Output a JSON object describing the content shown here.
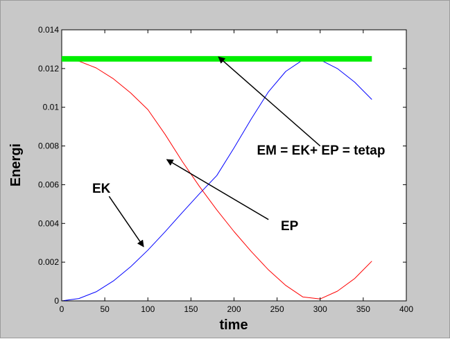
{
  "chart_data": {
    "type": "line",
    "title": "",
    "xlabel": "time",
    "ylabel": "Energi",
    "xlim": [
      0,
      400
    ],
    "ylim": [
      0,
      0.014
    ],
    "xticks": [
      0,
      50,
      100,
      150,
      200,
      250,
      300,
      350,
      400
    ],
    "yticks": [
      0,
      0.002,
      0.004,
      0.006,
      0.008,
      0.01,
      0.012,
      0.014
    ],
    "xtick_labels": [
      "0",
      "50",
      "100",
      "150",
      "200",
      "250",
      "300",
      "350",
      "400"
    ],
    "ytick_labels": [
      "0",
      "0.002",
      "0.004",
      "0.006",
      "0.008",
      "0.01",
      "0.012",
      "0.014"
    ],
    "grid": false,
    "series": [
      {
        "name": "EK",
        "color": "#0000ff",
        "x": [
          0,
          20,
          40,
          60,
          80,
          100,
          120,
          140,
          160,
          180,
          200,
          220,
          240,
          260,
          280,
          300,
          320,
          340,
          360
        ],
        "y": [
          0,
          0.00012,
          0.00047,
          0.00103,
          0.00176,
          0.00262,
          0.00357,
          0.00456,
          0.00554,
          0.00647,
          0.0079,
          0.0094,
          0.0108,
          0.01185,
          0.01245,
          0.01245,
          0.012,
          0.0113,
          0.0104
        ]
      },
      {
        "name": "EP",
        "color": "#ff0000",
        "x": [
          0,
          20,
          40,
          60,
          80,
          100,
          120,
          140,
          160,
          180,
          200,
          220,
          240,
          260,
          280,
          300,
          320,
          340,
          360
        ],
        "y": [
          0.0125,
          0.01238,
          0.01203,
          0.01147,
          0.01074,
          0.00988,
          0.0086,
          0.0072,
          0.0059,
          0.0047,
          0.00358,
          0.00255,
          0.0016,
          0.0008,
          0.0002,
          0.0001,
          0.0005,
          0.00115,
          0.00205
        ]
      },
      {
        "name": "EM",
        "color": "#00ee00",
        "x": [
          0,
          360
        ],
        "y": [
          0.0125,
          0.0125
        ]
      }
    ],
    "annotations": [
      {
        "text": "EM = EK+ EP = tetap",
        "from": [
          300,
          0.008
        ],
        "to": [
          182,
          0.0126
        ]
      },
      {
        "text": "EP",
        "from": [
          240,
          0.0042
        ],
        "to": [
          122,
          0.0073
        ]
      },
      {
        "text": "EK",
        "from": [
          55,
          0.0054
        ],
        "to": [
          95,
          0.0028
        ]
      }
    ]
  }
}
